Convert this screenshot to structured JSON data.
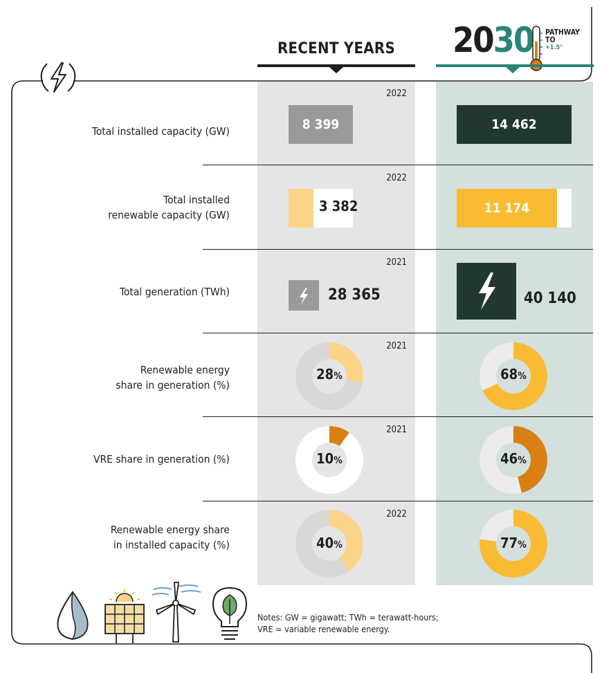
{
  "columns": {
    "recent_label": "RECENT YEARS",
    "pathway_year_a": "20",
    "pathway_year_b": "30",
    "pathway_line1": "PATHWAY",
    "pathway_line2": "TO",
    "pathway_line3": "+1.5°"
  },
  "colors": {
    "dark_green": "#233732",
    "teal": "#2a8576",
    "gray_box": "#9a9a9a",
    "light_yellow": "#fbd389",
    "yellow": "#f9bb34",
    "orange": "#d88014",
    "recent_bg": "#e5e5e5",
    "pathway_bg": "#d3e0de"
  },
  "chart_data": {
    "type": "table",
    "rows": [
      {
        "label": "Total installed capacity (GW)",
        "year": "2022",
        "recent": "8 399",
        "pathway": "14 462"
      },
      {
        "label": "Total installed renewable capacity (GW)",
        "label_line1": "Total installed",
        "label_line2": "renewable capacity (GW)",
        "year": "2022",
        "recent": "3 382",
        "pathway": "11 174"
      },
      {
        "label": "Total generation (TWh)",
        "year": "2021",
        "recent": "28 365",
        "pathway": "40 140"
      },
      {
        "label": "Renewable energy share in generation (%)",
        "label_line1": "Renewable energy",
        "label_line2": "share in generation (%)",
        "year": "2021",
        "recent": "28",
        "pathway": "68",
        "unit": "%"
      },
      {
        "label": "VRE share in generation (%)",
        "year": "2021",
        "recent": "10",
        "pathway": "46",
        "unit": "%"
      },
      {
        "label": "Renewable energy share in installed capacity (%)",
        "label_line1": "Renewable energy share",
        "label_line2": "in installed capacity (%)",
        "year": "2022",
        "recent": "40",
        "pathway": "77",
        "unit": "%"
      }
    ],
    "numeric": {
      "capacity_gw": {
        "recent": 8399,
        "pathway": 14462
      },
      "renewable_capacity_gw": {
        "recent": 3382,
        "pathway": 11174
      },
      "generation_twh": {
        "recent": 28365,
        "pathway": 40140
      },
      "re_share_generation_pct": {
        "recent": 28,
        "pathway": 68
      },
      "vre_share_generation_pct": {
        "recent": 10,
        "pathway": 46
      },
      "re_share_capacity_pct": {
        "recent": 40,
        "pathway": 77
      }
    }
  },
  "notes": {
    "line1": "Notes: GW = gigawatt; TWh = terawatt-hours;",
    "line2": "VRE = variable renewable energy."
  }
}
